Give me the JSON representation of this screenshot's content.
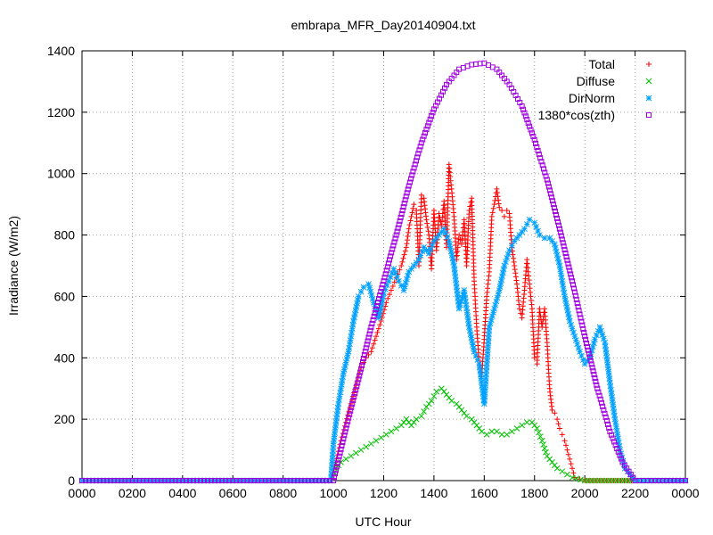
{
  "chart_data": {
    "type": "scatter",
    "title": "embrapa_MFR_Day20140904.txt",
    "xlabel": "UTC Hour",
    "ylabel": "Irradiance (W/m2)",
    "xlim": [
      0,
      24
    ],
    "ylim": [
      0,
      1400
    ],
    "x_ticks": [
      0,
      2,
      4,
      6,
      8,
      10,
      12,
      14,
      16,
      18,
      20,
      22,
      24
    ],
    "x_tick_labels": [
      "0000",
      "0200",
      "0400",
      "0600",
      "0800",
      "1000",
      "1200",
      "1400",
      "1600",
      "1800",
      "2000",
      "2200",
      "0000"
    ],
    "y_ticks": [
      0,
      200,
      400,
      600,
      800,
      1000,
      1200,
      1400
    ],
    "y_tick_labels": [
      "0",
      "200",
      "400",
      "600",
      "800",
      "1000",
      "1200",
      "1400"
    ],
    "grid": true,
    "legend_position": "top-right",
    "series": [
      {
        "name": "Total",
        "marker": "plus",
        "color": "#ff0000",
        "points": [
          [
            0,
            0
          ],
          [
            2,
            0
          ],
          [
            4,
            0
          ],
          [
            6,
            0
          ],
          [
            8,
            0
          ],
          [
            9.9,
            0
          ],
          [
            10.1,
            60
          ],
          [
            10.3,
            130
          ],
          [
            10.5,
            190
          ],
          [
            10.7,
            250
          ],
          [
            10.9,
            310
          ],
          [
            11.1,
            370
          ],
          [
            11.3,
            400
          ],
          [
            11.5,
            420
          ],
          [
            11.7,
            470
          ],
          [
            11.9,
            520
          ],
          [
            12.1,
            580
          ],
          [
            12.3,
            620
          ],
          [
            12.5,
            660
          ],
          [
            12.7,
            700
          ],
          [
            12.9,
            760
          ],
          [
            13.0,
            820
          ],
          [
            13.1,
            860
          ],
          [
            13.2,
            900
          ],
          [
            13.3,
            880
          ],
          [
            13.4,
            700
          ],
          [
            13.5,
            930
          ],
          [
            13.6,
            920
          ],
          [
            13.7,
            850
          ],
          [
            13.8,
            800
          ],
          [
            13.9,
            690
          ],
          [
            14.0,
            880
          ],
          [
            14.1,
            750
          ],
          [
            14.2,
            870
          ],
          [
            14.3,
            830
          ],
          [
            14.4,
            910
          ],
          [
            14.5,
            760
          ],
          [
            14.6,
            1030
          ],
          [
            14.7,
            950
          ],
          [
            14.8,
            860
          ],
          [
            14.9,
            720
          ],
          [
            15.0,
            800
          ],
          [
            15.1,
            770
          ],
          [
            15.2,
            850
          ],
          [
            15.3,
            700
          ],
          [
            15.4,
            880
          ],
          [
            15.5,
            920
          ],
          [
            15.6,
            650
          ],
          [
            15.7,
            500
          ],
          [
            15.8,
            380
          ],
          [
            15.9,
            340
          ],
          [
            16.0,
            460
          ],
          [
            16.1,
            600
          ],
          [
            16.2,
            680
          ],
          [
            16.3,
            860
          ],
          [
            16.4,
            900
          ],
          [
            16.5,
            950
          ],
          [
            16.6,
            890
          ],
          [
            16.7,
            880
          ],
          [
            16.8,
            860
          ],
          [
            16.9,
            880
          ],
          [
            17.0,
            870
          ],
          [
            17.1,
            760
          ],
          [
            17.2,
            700
          ],
          [
            17.3,
            640
          ],
          [
            17.4,
            560
          ],
          [
            17.5,
            530
          ],
          [
            17.6,
            620
          ],
          [
            17.7,
            720
          ],
          [
            17.8,
            640
          ],
          [
            17.9,
            560
          ],
          [
            18.0,
            400
          ],
          [
            18.1,
            380
          ],
          [
            18.2,
            560
          ],
          [
            18.3,
            500
          ],
          [
            18.4,
            560
          ],
          [
            18.5,
            450
          ],
          [
            18.6,
            300
          ],
          [
            18.7,
            230
          ],
          [
            18.8,
            220
          ],
          [
            18.9,
            200
          ],
          [
            19.0,
            170
          ],
          [
            19.1,
            150
          ],
          [
            19.2,
            130
          ],
          [
            19.3,
            100
          ],
          [
            19.4,
            70
          ],
          [
            19.5,
            40
          ],
          [
            19.6,
            10
          ],
          [
            20,
            0
          ],
          [
            22,
            0
          ],
          [
            24,
            0
          ]
        ]
      },
      {
        "name": "Diffuse",
        "marker": "cross",
        "color": "#00c000",
        "points": [
          [
            0,
            0
          ],
          [
            2,
            0
          ],
          [
            4,
            0
          ],
          [
            6,
            0
          ],
          [
            8,
            0
          ],
          [
            9.9,
            0
          ],
          [
            10.1,
            40
          ],
          [
            10.3,
            60
          ],
          [
            10.5,
            70
          ],
          [
            10.7,
            80
          ],
          [
            10.9,
            90
          ],
          [
            11.1,
            100
          ],
          [
            11.3,
            110
          ],
          [
            11.5,
            120
          ],
          [
            11.7,
            130
          ],
          [
            11.9,
            140
          ],
          [
            12.1,
            150
          ],
          [
            12.3,
            160
          ],
          [
            12.5,
            170
          ],
          [
            12.7,
            180
          ],
          [
            12.9,
            200
          ],
          [
            13.1,
            180
          ],
          [
            13.3,
            200
          ],
          [
            13.5,
            210
          ],
          [
            13.7,
            240
          ],
          [
            13.9,
            260
          ],
          [
            14.1,
            290
          ],
          [
            14.3,
            300
          ],
          [
            14.5,
            280
          ],
          [
            14.7,
            260
          ],
          [
            14.9,
            250
          ],
          [
            15.1,
            230
          ],
          [
            15.3,
            210
          ],
          [
            15.5,
            200
          ],
          [
            15.7,
            180
          ],
          [
            15.9,
            160
          ],
          [
            16.1,
            150
          ],
          [
            16.3,
            160
          ],
          [
            16.5,
            160
          ],
          [
            16.7,
            150
          ],
          [
            16.9,
            150
          ],
          [
            17.1,
            160
          ],
          [
            17.3,
            170
          ],
          [
            17.5,
            180
          ],
          [
            17.7,
            190
          ],
          [
            17.9,
            190
          ],
          [
            18.1,
            170
          ],
          [
            18.3,
            130
          ],
          [
            18.5,
            80
          ],
          [
            18.7,
            60
          ],
          [
            18.9,
            40
          ],
          [
            19.1,
            30
          ],
          [
            19.3,
            20
          ],
          [
            19.5,
            10
          ],
          [
            20,
            0
          ],
          [
            22,
            0
          ],
          [
            24,
            0
          ]
        ]
      },
      {
        "name": "DirNorm",
        "marker": "star",
        "color": "#00a0ff",
        "points": [
          [
            0,
            0
          ],
          [
            2,
            0
          ],
          [
            4,
            0
          ],
          [
            6,
            0
          ],
          [
            8,
            0
          ],
          [
            9.9,
            0
          ],
          [
            10.0,
            120
          ],
          [
            10.2,
            250
          ],
          [
            10.4,
            350
          ],
          [
            10.6,
            420
          ],
          [
            10.8,
            520
          ],
          [
            11.0,
            600
          ],
          [
            11.2,
            630
          ],
          [
            11.4,
            640
          ],
          [
            11.6,
            580
          ],
          [
            11.8,
            530
          ],
          [
            12.0,
            610
          ],
          [
            12.2,
            650
          ],
          [
            12.4,
            690
          ],
          [
            12.6,
            650
          ],
          [
            12.8,
            620
          ],
          [
            13.0,
            680
          ],
          [
            13.2,
            700
          ],
          [
            13.4,
            720
          ],
          [
            13.6,
            760
          ],
          [
            13.8,
            740
          ],
          [
            14.0,
            780
          ],
          [
            14.2,
            800
          ],
          [
            14.4,
            820
          ],
          [
            14.6,
            780
          ],
          [
            14.8,
            700
          ],
          [
            15.0,
            560
          ],
          [
            15.2,
            620
          ],
          [
            15.4,
            500
          ],
          [
            15.6,
            420
          ],
          [
            15.8,
            380
          ],
          [
            16.0,
            250
          ],
          [
            16.2,
            500
          ],
          [
            16.4,
            560
          ],
          [
            16.6,
            620
          ],
          [
            16.8,
            700
          ],
          [
            17.0,
            750
          ],
          [
            17.2,
            780
          ],
          [
            17.4,
            800
          ],
          [
            17.6,
            820
          ],
          [
            17.8,
            850
          ],
          [
            18.0,
            840
          ],
          [
            18.2,
            800
          ],
          [
            18.4,
            790
          ],
          [
            18.6,
            790
          ],
          [
            18.8,
            770
          ],
          [
            19.0,
            700
          ],
          [
            19.2,
            600
          ],
          [
            19.4,
            520
          ],
          [
            19.6,
            470
          ],
          [
            19.8,
            420
          ],
          [
            20.0,
            380
          ],
          [
            20.2,
            400
          ],
          [
            20.4,
            460
          ],
          [
            20.6,
            500
          ],
          [
            20.8,
            450
          ],
          [
            21.0,
            320
          ],
          [
            21.2,
            200
          ],
          [
            21.4,
            100
          ],
          [
            21.6,
            40
          ],
          [
            22,
            0
          ],
          [
            24,
            0
          ]
        ]
      },
      {
        "name": "1380*cos(zth)",
        "marker": "square",
        "color": "#a000e0",
        "points": [
          [
            0,
            0
          ],
          [
            2,
            0
          ],
          [
            4,
            0
          ],
          [
            6,
            0
          ],
          [
            8,
            0
          ],
          [
            10,
            0
          ],
          [
            10.5,
            170
          ],
          [
            11,
            330
          ],
          [
            11.5,
            500
          ],
          [
            12,
            650
          ],
          [
            12.5,
            800
          ],
          [
            13,
            960
          ],
          [
            13.5,
            1100
          ],
          [
            14,
            1210
          ],
          [
            14.5,
            1290
          ],
          [
            15,
            1340
          ],
          [
            15.5,
            1355
          ],
          [
            16,
            1360
          ],
          [
            16.5,
            1340
          ],
          [
            17,
            1290
          ],
          [
            17.5,
            1220
          ],
          [
            18,
            1110
          ],
          [
            18.5,
            980
          ],
          [
            19,
            820
          ],
          [
            19.5,
            650
          ],
          [
            20,
            470
          ],
          [
            20.5,
            300
          ],
          [
            21,
            160
          ],
          [
            21.5,
            60
          ],
          [
            22,
            0
          ],
          [
            22.5,
            0
          ],
          [
            24,
            0
          ]
        ]
      }
    ]
  }
}
